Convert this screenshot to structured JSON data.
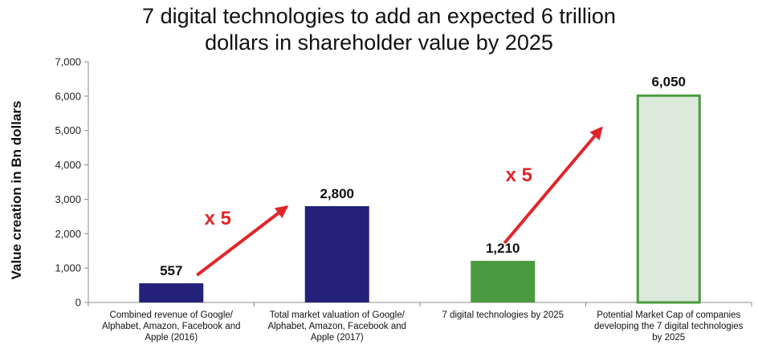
{
  "chart_data": {
    "type": "bar",
    "title_lines": [
      "7 digital technologies to add an expected 6 trillion",
      "dollars in shareholder value by 2025"
    ],
    "ylabel": "Value creation in Bn dollars",
    "xlabel": "",
    "ylim": [
      0,
      7000
    ],
    "yticks": [
      "0",
      "1,000",
      "2,000",
      "3,000",
      "4,000",
      "5,000",
      "6,000",
      "7,000"
    ],
    "grid": false,
    "categories": [
      [
        "Combined revenue of Google/",
        "Alphabet, Amazon, Facebook and",
        "Apple (2016)"
      ],
      [
        "Total market valuation of Google/",
        "Alphabet, Amazon, Facebook and",
        "Apple (2017)"
      ],
      [
        "7 digital technologies by 2025"
      ],
      [
        "Potential Market Cap of companies",
        "developing the 7 digital technologies",
        "by 2025"
      ]
    ],
    "values": [
      557,
      2800,
      1210,
      6050
    ],
    "data_labels": [
      "557",
      "2,800",
      "1,210",
      "6,050"
    ],
    "bar_colors": [
      "#24217a",
      "#24217a",
      "#4a9a3f",
      "#dceadb"
    ],
    "bar_outline": [
      "none",
      "none",
      "none",
      "#4a9a3f"
    ],
    "annotations": [
      {
        "text": "x 5",
        "color": "#e0262b"
      },
      {
        "text": "x 5",
        "color": "#e0262b"
      }
    ],
    "arrow_color": "#e0262b"
  }
}
